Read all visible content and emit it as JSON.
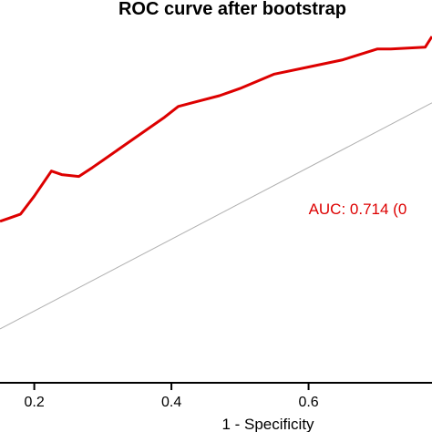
{
  "chart_data": {
    "type": "line",
    "title": "ROC curve after bootstrap",
    "xlabel": "1 - Specificity",
    "ylabel": "",
    "xlim": [
      0.15,
      0.78
    ],
    "ylim": [
      0.0,
      0.965
    ],
    "x_ticks": [
      0.2,
      0.4,
      0.6
    ],
    "x_tick_labels": [
      "0.2",
      "0.4",
      "0.6"
    ],
    "series": [
      {
        "color": "#dd0000",
        "x": [
          0.15,
          0.165,
          0.18,
          0.2,
          0.225,
          0.24,
          0.265,
          0.285,
          0.3,
          0.33,
          0.36,
          0.39,
          0.41,
          0.43,
          0.47,
          0.5,
          0.55,
          0.6,
          0.65,
          0.7,
          0.72,
          0.77,
          0.78
        ],
        "y": [
          0.45,
          0.46,
          0.47,
          0.52,
          0.59,
          0.58,
          0.575,
          0.6,
          0.62,
          0.66,
          0.7,
          0.74,
          0.77,
          0.78,
          0.8,
          0.82,
          0.86,
          0.88,
          0.9,
          0.93,
          0.93,
          0.935,
          0.965
        ]
      },
      {
        "color": "#b0b0b0",
        "x": [
          0.15,
          0.78
        ],
        "y": [
          0.15,
          0.78
        ]
      }
    ],
    "annotations": [
      {
        "text": "AUC: 0.714 (0",
        "x": 0.6,
        "y": 0.47,
        "color": "#dd0000"
      }
    ]
  }
}
